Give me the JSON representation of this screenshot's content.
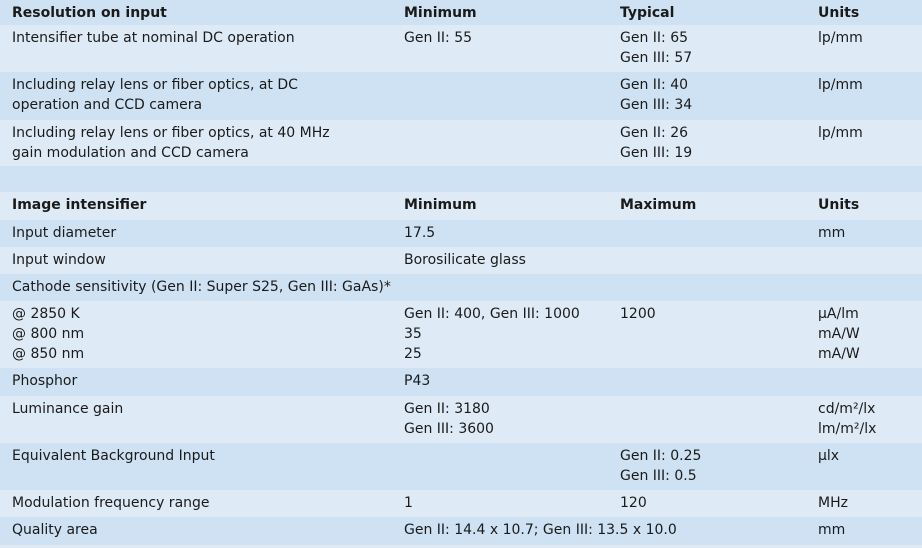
{
  "table1": {
    "header": [
      "Resolution on input",
      "Minimum",
      "Typical",
      "Units"
    ],
    "rows": [
      [
        "Intensifier tube at nominal DC operation",
        "Gen II: 55",
        "Gen II: 65\nGen III: 57",
        "lp/mm"
      ],
      [
        "Including relay lens or fiber optics, at DC\noperation and CCD camera",
        "",
        "Gen II: 40\nGen III: 34",
        "lp/mm"
      ],
      [
        "Including relay lens or fiber optics, at 40 MHz\ngain modulation and CCD camera",
        "",
        "Gen II: 26\nGen III: 19",
        "lp/mm"
      ]
    ]
  },
  "table2": {
    "header": [
      "Image intensifier",
      "Minimum",
      "Maximum",
      "Units"
    ],
    "rows": [
      [
        "Input diameter",
        "17.5",
        "",
        "mm"
      ],
      [
        "Input window",
        "Borosilicate glass",
        "",
        ""
      ],
      [
        "Cathode sensitivity (Gen II: Super S25, Gen III: GaAs)*",
        "",
        "",
        ""
      ],
      [
        "@ 2850 K\n@ 800 nm\n@ 850 nm",
        "Gen II: 400, Gen III: 1000\n35\n25",
        "1200",
        "µA/lm\nmA/W\nmA/W"
      ],
      [
        "Phosphor",
        "P43",
        "",
        ""
      ],
      [
        "Luminance gain",
        "Gen II: 3180\nGen III: 3600",
        "",
        "cd/m²/lx\nlm/m²/lx"
      ],
      [
        "Equivalent Background Input",
        "",
        "Gen II: 0.25\nGen III: 0.5",
        "µlx"
      ],
      [
        "Modulation frequency range",
        "1",
        "120",
        "MHz"
      ],
      [
        "Quality area",
        "Gen II: 14.4 x 10.7; Gen III: 13.5 x 10.0",
        "",
        "mm"
      ]
    ]
  },
  "colors": {
    "dark_row": "#cfe2f3",
    "light_row": "#deebf7"
  }
}
